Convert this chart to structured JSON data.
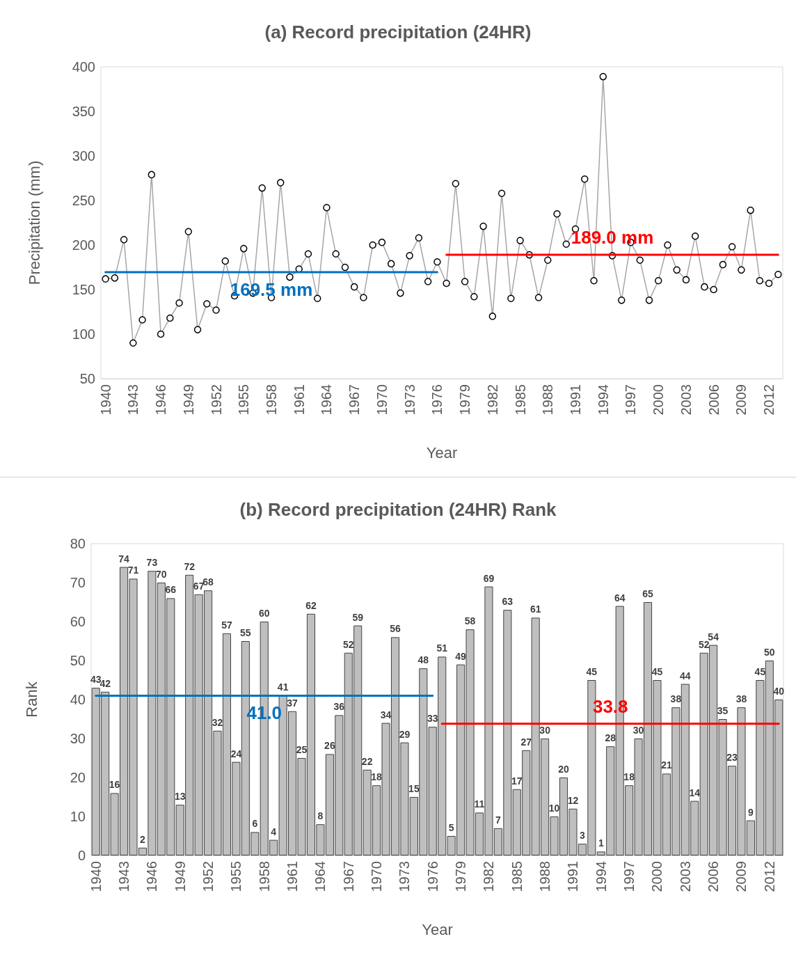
{
  "chart_data": [
    {
      "type": "line",
      "title": "(a) Record precipitation (24HR)",
      "xlabel": "Year",
      "ylabel": "Precipitation (mm)",
      "marker": "circle",
      "x": [
        1940,
        1941,
        1942,
        1943,
        1944,
        1945,
        1946,
        1947,
        1948,
        1949,
        1950,
        1951,
        1952,
        1953,
        1954,
        1955,
        1956,
        1957,
        1958,
        1959,
        1960,
        1961,
        1962,
        1963,
        1964,
        1965,
        1966,
        1967,
        1968,
        1969,
        1970,
        1971,
        1972,
        1973,
        1974,
        1975,
        1976,
        1977,
        1978,
        1979,
        1980,
        1981,
        1982,
        1983,
        1984,
        1985,
        1986,
        1987,
        1988,
        1989,
        1990,
        1991,
        1992,
        1993,
        1994,
        1995,
        1996,
        1997,
        1998,
        1999,
        2000,
        2001,
        2002,
        2003,
        2004,
        2005,
        2006,
        2007,
        2008,
        2009,
        2010,
        2011,
        2012,
        2013
      ],
      "series": [
        {
          "color": "#a6a6a6",
          "values": [
            162,
            163,
            206,
            90,
            116,
            279,
            100,
            118,
            135,
            215,
            105,
            134,
            127,
            182,
            143,
            196,
            146,
            264,
            141,
            270,
            164,
            173,
            190,
            140,
            242,
            190,
            175,
            153,
            141,
            200,
            203,
            179,
            146,
            188,
            208,
            159,
            181,
            157,
            269,
            159,
            142,
            221,
            120,
            258,
            140,
            205,
            189,
            141,
            183,
            235,
            201,
            218,
            274,
            160,
            389,
            188,
            138,
            203,
            183,
            138,
            160,
            200,
            172,
            161,
            210,
            153,
            150,
            178,
            198,
            172,
            239,
            160,
            157,
            167
          ]
        },
        {
          "type": "line",
          "marker": "none",
          "name": "169.5 mm",
          "color": "#0070c0",
          "x": [
            1940,
            1976
          ],
          "values": [
            169.5,
            169.5
          ]
        },
        {
          "type": "line",
          "marker": "none",
          "name": "189.0 mm",
          "color": "#ff0000",
          "x": [
            1977,
            2013
          ],
          "values": [
            189.0,
            189.0
          ]
        }
      ],
      "xlim": [
        1939.5,
        2013.5
      ],
      "xticks": [
        1940,
        1943,
        1946,
        1949,
        1952,
        1955,
        1958,
        1961,
        1964,
        1967,
        1970,
        1973,
        1976,
        1979,
        1982,
        1985,
        1988,
        1991,
        1994,
        1997,
        2000,
        2003,
        2006,
        2009,
        2012
      ],
      "ylim": [
        50,
        400
      ],
      "yticks": [
        50,
        100,
        150,
        200,
        250,
        300,
        350,
        400
      ]
    },
    {
      "type": "bar",
      "title": "(b) Record precipitation (24HR) Rank",
      "xlabel": "Year",
      "ylabel": "Rank",
      "x": [
        1940,
        1941,
        1942,
        1943,
        1944,
        1945,
        1946,
        1947,
        1948,
        1949,
        1950,
        1951,
        1952,
        1953,
        1954,
        1955,
        1956,
        1957,
        1958,
        1959,
        1960,
        1961,
        1962,
        1963,
        1964,
        1965,
        1966,
        1967,
        1968,
        1969,
        1970,
        1971,
        1972,
        1973,
        1974,
        1975,
        1976,
        1977,
        1978,
        1979,
        1980,
        1981,
        1982,
        1983,
        1984,
        1985,
        1986,
        1987,
        1988,
        1989,
        1990,
        1991,
        1992,
        1993,
        1994,
        1995,
        1996,
        1997,
        1998,
        1999,
        2000,
        2001,
        2002,
        2003,
        2004,
        2005,
        2006,
        2007,
        2008,
        2009,
        2010,
        2011,
        2012,
        2013
      ],
      "series": [
        {
          "color": "#bfbfbf",
          "values": [
            43,
            42,
            16,
            74,
            71,
            2,
            73,
            70,
            66,
            13,
            72,
            67,
            68,
            32,
            57,
            24,
            55,
            6,
            60,
            4,
            41,
            37,
            25,
            62,
            8,
            26,
            36,
            52,
            59,
            22,
            18,
            34,
            56,
            29,
            15,
            48,
            33,
            51,
            5,
            49,
            58,
            11,
            69,
            7,
            63,
            17,
            27,
            61,
            30,
            10,
            20,
            12,
            3,
            45,
            1,
            28,
            64,
            18,
            30,
            65,
            45,
            21,
            38,
            44,
            14,
            52,
            54,
            35,
            23,
            38,
            9,
            45,
            50,
            40
          ],
          "value_labels": [
            "43",
            "42",
            "16",
            "74",
            "71",
            "2",
            "73",
            "70",
            "66",
            "13",
            "72",
            "67",
            "68",
            "32",
            "57",
            "24",
            "55",
            "6",
            "60",
            "4",
            "41",
            "37",
            "25",
            "62",
            "8",
            "26",
            "36",
            "52",
            "59",
            "22",
            "18",
            "34",
            "56",
            "29",
            "15",
            "48",
            "33",
            "51",
            "5",
            "49",
            "58",
            "11",
            "69",
            "7",
            "63",
            "17",
            "27",
            "61",
            "30",
            "10",
            "20",
            "12",
            "3",
            "45",
            "1",
            "28",
            "64",
            "18",
            "30",
            "65",
            "45",
            "21",
            "38",
            "44",
            "14",
            "52",
            "54",
            "35",
            "23",
            "38",
            "9",
            "45",
            "50",
            "40"
          ]
        },
        {
          "type": "line",
          "marker": "none",
          "name": "41.0",
          "color": "#0070c0",
          "x": [
            1940,
            1976
          ],
          "values": [
            41.0,
            41.0
          ]
        },
        {
          "type": "line",
          "marker": "none",
          "name": "33.8",
          "color": "#ff0000",
          "x": [
            1977,
            2013
          ],
          "values": [
            33.8,
            33.8
          ]
        }
      ],
      "xlim": [
        1939.5,
        2013.5
      ],
      "xticks": [
        1940,
        1943,
        1946,
        1949,
        1952,
        1955,
        1958,
        1961,
        1964,
        1967,
        1970,
        1973,
        1976,
        1979,
        1982,
        1985,
        1988,
        1991,
        1994,
        1997,
        2000,
        2003,
        2006,
        2009,
        2012
      ],
      "ylim": [
        0,
        80
      ],
      "yticks": [
        0,
        10,
        20,
        30,
        40,
        50,
        60,
        70,
        80
      ]
    }
  ]
}
